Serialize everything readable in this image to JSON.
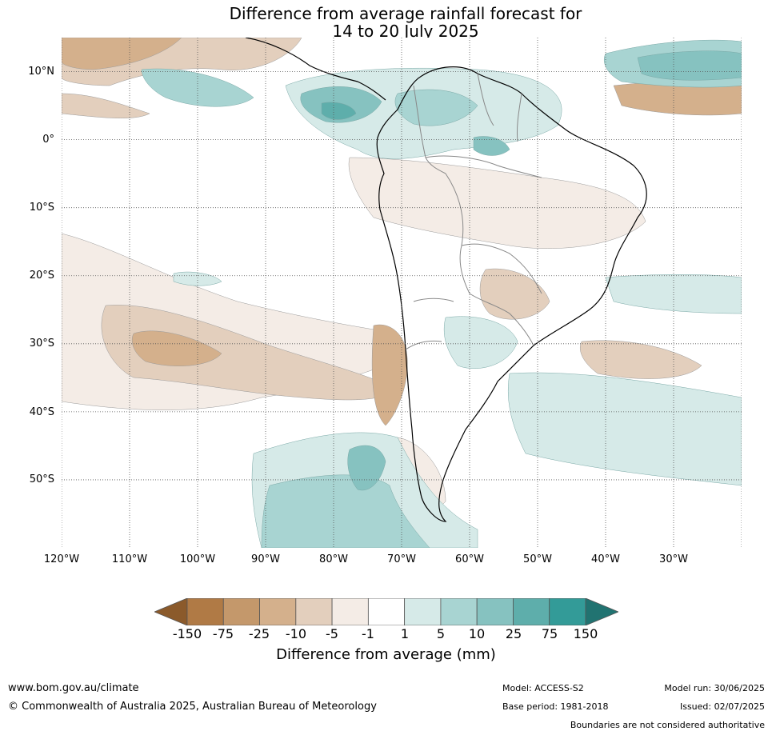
{
  "title": {
    "line1": "Difference from average rainfall forecast for",
    "line2": "14 to 20 July 2025"
  },
  "map": {
    "lat_labels": [
      "10°N",
      "0°",
      "10°S",
      "20°S",
      "30°S",
      "40°S",
      "50°S"
    ],
    "lon_labels": [
      "120°W",
      "110°W",
      "100°W",
      "90°W",
      "80°W",
      "70°W",
      "60°W",
      "50°W",
      "40°W",
      "30°W"
    ],
    "extent": {
      "lon_min": -120,
      "lon_max": -20,
      "lat_min": -60,
      "lat_max": 15
    }
  },
  "colorbar": {
    "title": "Difference from average (mm)",
    "tick_labels": [
      "-150",
      "-75",
      "-25",
      "-10",
      "-5",
      "-1",
      "1",
      "5",
      "10",
      "25",
      "75",
      "150"
    ],
    "colors": [
      "#8b5a2b",
      "#b07a45",
      "#c4986b",
      "#d4b08c",
      "#e3cfbd",
      "#f4ece6",
      "#ffffff",
      "#d6eae8",
      "#a8d4d2",
      "#86c2c0",
      "#5eaeab",
      "#339b98",
      "#217371"
    ]
  },
  "footer": {
    "url": "www.bom.gov.au/climate",
    "copyright": "© Commonwealth of Australia 2025, Australian Bureau of Meteorology",
    "model": "Model: ACCESS-S2",
    "base_period": "Base period: 1981-2018",
    "model_run": "Model run: 30/06/2025",
    "issued": "Issued: 02/07/2025",
    "boundaries": "Boundaries are not considered authoritative"
  }
}
